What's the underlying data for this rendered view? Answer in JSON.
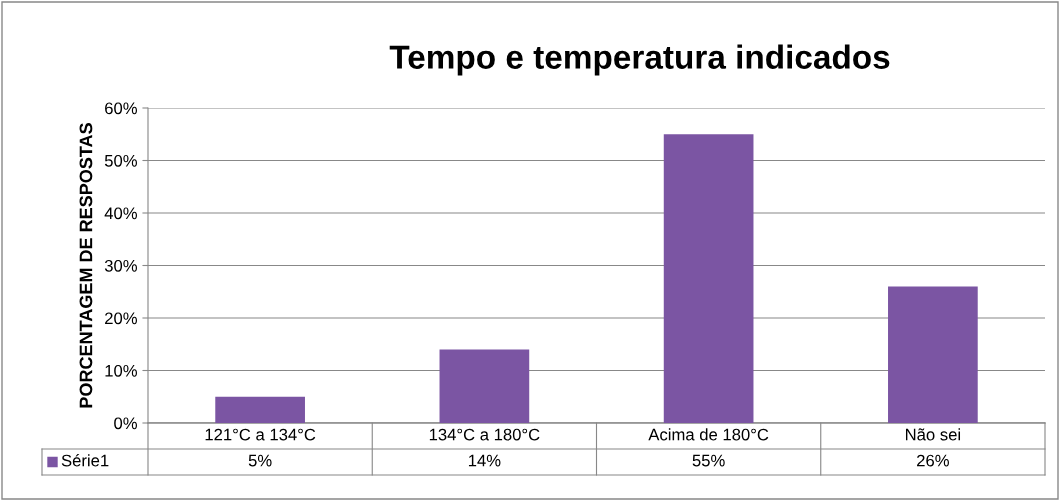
{
  "chart_data": {
    "type": "bar",
    "title": "Tempo e temperatura indicados",
    "ylabel": "PORCENTAGEM DE RESPOSTAS",
    "categories": [
      "121°C a 134°C",
      "134°C a 180°C",
      "Acima de 180°C",
      "Não sei"
    ],
    "series": [
      {
        "name": "Série1",
        "color": "#7b55a3",
        "values": [
          5,
          14,
          55,
          26
        ],
        "value_labels": [
          "5%",
          "14%",
          "55%",
          "26%"
        ]
      }
    ],
    "ylim": [
      0,
      60
    ],
    "yticks": [
      {
        "value": 0,
        "label": "0%"
      },
      {
        "value": 10,
        "label": "10%"
      },
      {
        "value": 20,
        "label": "20%"
      },
      {
        "value": 30,
        "label": "30%"
      },
      {
        "value": 40,
        "label": "40%"
      },
      {
        "value": 50,
        "label": "50%"
      },
      {
        "value": 60,
        "label": "60%"
      }
    ],
    "grid": "y",
    "legend": "bottom"
  }
}
